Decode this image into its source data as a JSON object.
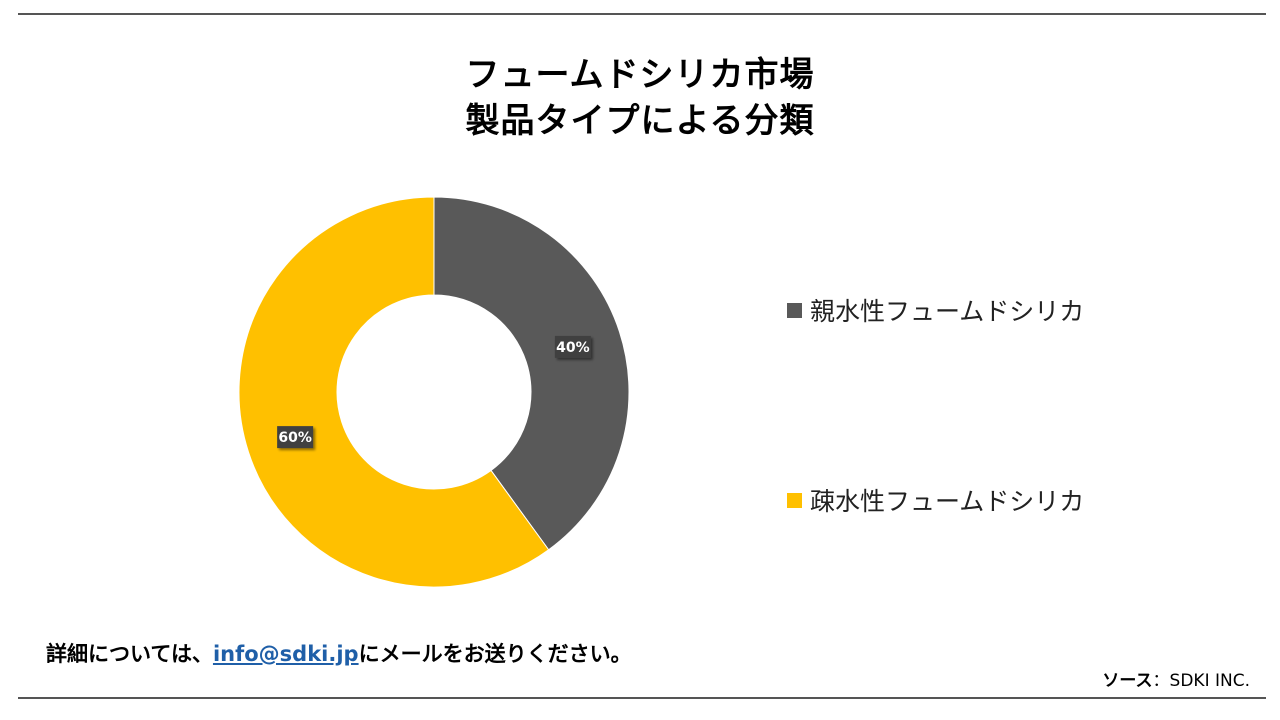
{
  "title": {
    "line1": "フュームドシリカ市場",
    "line2": "製品タイプによる分類"
  },
  "chart_data": {
    "type": "pie",
    "donut": true,
    "series": [
      {
        "name": "親水性フュームドシリカ",
        "value": 40,
        "label": "40%",
        "color": "#595959"
      },
      {
        "name": "疎水性フュームドシリカ",
        "value": 60,
        "label": "60%",
        "color": "#FFC000"
      }
    ],
    "legend_position": "right"
  },
  "footer": {
    "prefix": "詳細については、",
    "email": "info@sdki.jp",
    "suffix": "にメールをお送りください。"
  },
  "source": {
    "key": "ソース",
    "value": "：SDKI INC."
  }
}
